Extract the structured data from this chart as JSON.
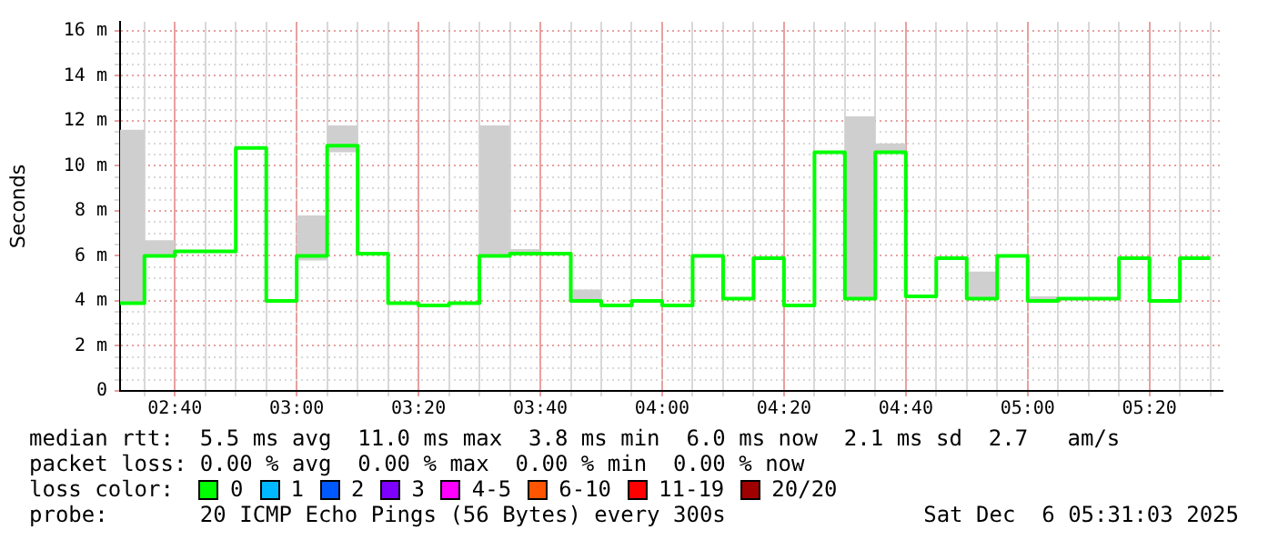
{
  "chart_data": {
    "type": "step",
    "ylabel": "Seconds",
    "grid": true,
    "legend": false,
    "x": [
      2.5167,
      2.5833,
      2.6667,
      2.75,
      2.8333,
      2.9167,
      3,
      3.0833,
      3.1667,
      3.25,
      3.3333,
      3.4167,
      3.5,
      3.5833,
      3.6667,
      3.75,
      3.8333,
      3.9167,
      4,
      4.0833,
      4.1667,
      4.25,
      4.3333,
      4.4167,
      4.5,
      4.5833,
      4.6667,
      4.75,
      4.8333,
      4.9167,
      5,
      5.0833,
      5.1667,
      5.25,
      5.3333,
      5.4167,
      5.5
    ],
    "series": [
      {
        "color": "#00ff00",
        "values": [
          3.9,
          6.0,
          6.2,
          6.2,
          10.8,
          4.0,
          6.0,
          10.9,
          6.1,
          3.9,
          3.8,
          3.9,
          6.0,
          6.1,
          6.1,
          4.0,
          3.8,
          4.0,
          3.8,
          6.0,
          4.1,
          5.9,
          3.8,
          10.6,
          4.1,
          10.6,
          4.2,
          5.9,
          4.1,
          6.0,
          4.0,
          4.1,
          4.1,
          5.9,
          4.0,
          5.9,
          5.9
        ],
        "lower": [
          3.9,
          6.0,
          6.2,
          6.2,
          10.8,
          4.0,
          5.8,
          10.6,
          6.1,
          3.9,
          3.8,
          3.9,
          6.0,
          6.1,
          6.1,
          4.0,
          3.8,
          4.0,
          3.8,
          6.0,
          4.1,
          5.9,
          3.8,
          10.6,
          4.1,
          10.6,
          4.2,
          5.9,
          4.1,
          6.0,
          4.0,
          4.1,
          4.1,
          5.9,
          4.0,
          5.9,
          5.9
        ],
        "upper": [
          11.6,
          6.7,
          6.2,
          6.2,
          10.8,
          4.0,
          7.8,
          11.8,
          6.1,
          3.9,
          3.8,
          3.9,
          11.8,
          6.3,
          6.1,
          4.5,
          3.8,
          4.0,
          3.8,
          6.0,
          4.1,
          5.9,
          3.8,
          10.6,
          12.2,
          11.0,
          4.2,
          5.9,
          5.3,
          6.0,
          4.2,
          4.1,
          4.1,
          5.9,
          4.0,
          5.9,
          5.9
        ]
      }
    ],
    "xlim": [
      2.5167,
      5.5333
    ],
    "xticks": [
      {
        "value": 2.5833,
        "label": null
      },
      {
        "value": 2.6667,
        "label": "02:40"
      },
      {
        "value": 2.75,
        "label": null
      },
      {
        "value": 2.8333,
        "label": null
      },
      {
        "value": 2.9167,
        "label": null
      },
      {
        "value": 3,
        "label": "03:00"
      },
      {
        "value": 3.0833,
        "label": null
      },
      {
        "value": 3.1667,
        "label": null
      },
      {
        "value": 3.25,
        "label": null
      },
      {
        "value": 3.3333,
        "label": "03:20"
      },
      {
        "value": 3.4167,
        "label": null
      },
      {
        "value": 3.5,
        "label": null
      },
      {
        "value": 3.5833,
        "label": null
      },
      {
        "value": 3.6667,
        "label": "03:40"
      },
      {
        "value": 3.75,
        "label": null
      },
      {
        "value": 3.8333,
        "label": null
      },
      {
        "value": 3.9167,
        "label": null
      },
      {
        "value": 4,
        "label": "04:00"
      },
      {
        "value": 4.0833,
        "label": null
      },
      {
        "value": 4.1667,
        "label": null
      },
      {
        "value": 4.25,
        "label": null
      },
      {
        "value": 4.3333,
        "label": "04:20"
      },
      {
        "value": 4.4167,
        "label": null
      },
      {
        "value": 4.5,
        "label": null
      },
      {
        "value": 4.5833,
        "label": null
      },
      {
        "value": 4.6667,
        "label": "04:40"
      },
      {
        "value": 4.75,
        "label": null
      },
      {
        "value": 4.8333,
        "label": null
      },
      {
        "value": 4.9167,
        "label": null
      },
      {
        "value": 5,
        "label": "05:00"
      },
      {
        "value": 5.0833,
        "label": null
      },
      {
        "value": 5.1667,
        "label": null
      },
      {
        "value": 5.25,
        "label": null
      },
      {
        "value": 5.3333,
        "label": "05:20"
      },
      {
        "value": 5.4167,
        "label": null
      },
      {
        "value": 5.5,
        "label": null
      }
    ],
    "ylim": [
      0,
      16.4
    ],
    "yticks": [
      0,
      {
        "value": 0.5,
        "label": null
      },
      {
        "value": 1,
        "label": null
      },
      {
        "value": 1.5,
        "label": null
      },
      {
        "value": 2,
        "label": "2 m"
      },
      {
        "value": 2.5,
        "label": null
      },
      {
        "value": 3,
        "label": null
      },
      {
        "value": 3.5,
        "label": null
      },
      {
        "value": 4,
        "label": "4 m"
      },
      {
        "value": 4.5,
        "label": null
      },
      {
        "value": 5,
        "label": null
      },
      {
        "value": 5.5,
        "label": null
      },
      {
        "value": 6,
        "label": "6 m"
      },
      {
        "value": 6.5,
        "label": null
      },
      {
        "value": 7,
        "label": null
      },
      {
        "value": 7.5,
        "label": null
      },
      {
        "value": 8,
        "label": "8 m"
      },
      {
        "value": 8.5,
        "label": null
      },
      {
        "value": 9,
        "label": null
      },
      {
        "value": 9.5,
        "label": null
      },
      {
        "value": 10,
        "label": "10 m"
      },
      {
        "value": 10.5,
        "label": null
      },
      {
        "value": 11,
        "label": null
      },
      {
        "value": 11.5,
        "label": null
      },
      {
        "value": 12,
        "label": "12 m"
      },
      {
        "value": 12.5,
        "label": null
      },
      {
        "value": 13,
        "label": null
      },
      {
        "value": 13.5,
        "label": null
      },
      {
        "value": 14,
        "label": "14 m"
      },
      {
        "value": 14.5,
        "label": null
      },
      {
        "value": 15,
        "label": null
      },
      {
        "value": 15.5,
        "label": null
      },
      {
        "value": 16,
        "label": "16 m"
      }
    ],
    "annotations": [
      "median rtt:  5.5 ms avg  11.0 ms max  3.8 ms min  6.0 ms now  2.1 ms sd  2.7   am/s",
      "packet loss: 0.00 % avg  0.00 % max  0.00 % min  0.00 % now",
      "loss color:",
      "0",
      "1",
      "2",
      "3",
      "4-5",
      "6-10",
      "11-19",
      "20/20",
      "probe:       20 ICMP Echo Pings (56 Bytes) every 300s",
      "Sat Dec  6 05:31:03 2025"
    ]
  }
}
